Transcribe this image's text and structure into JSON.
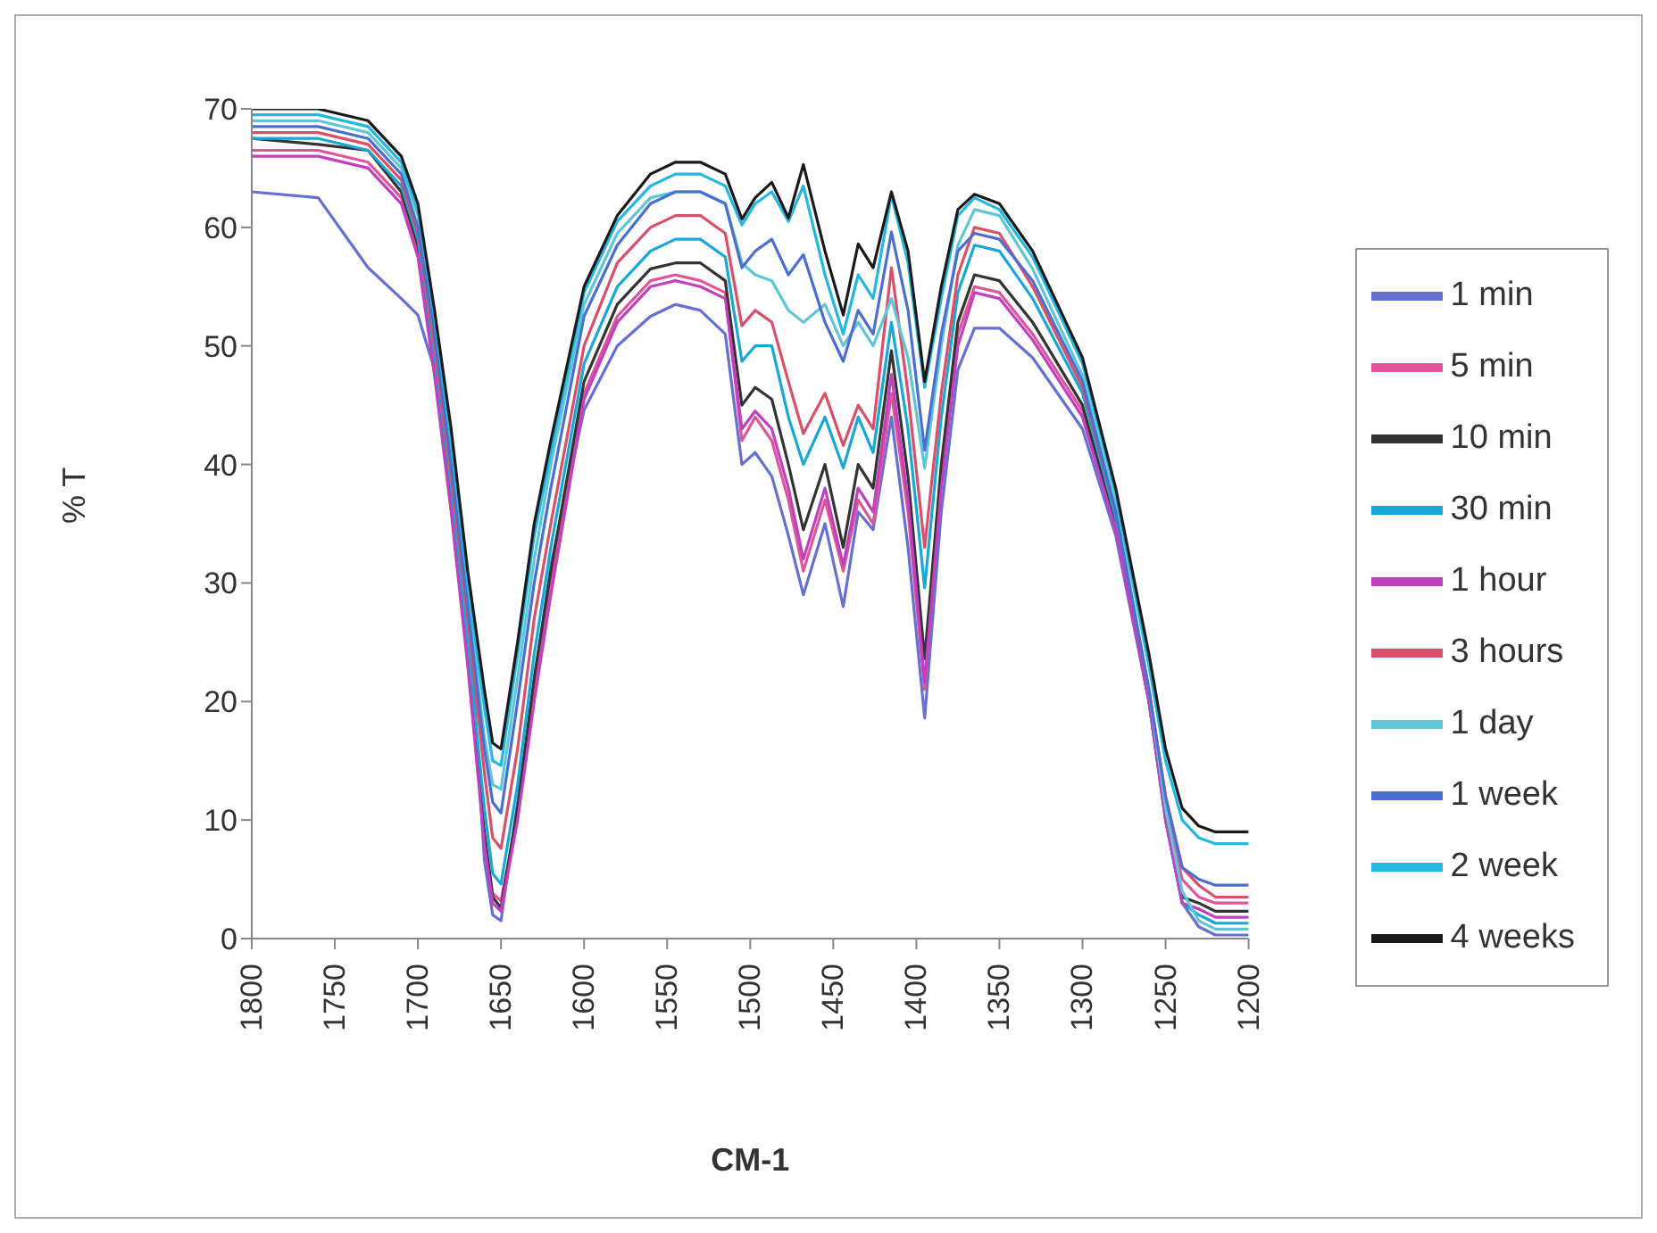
{
  "chart_data": {
    "type": "line",
    "xlabel": "CM-1",
    "ylabel": "% T",
    "x": [
      1800,
      1760,
      1730,
      1710,
      1700,
      1690,
      1680,
      1670,
      1660,
      1655,
      1650,
      1640,
      1630,
      1620,
      1600,
      1580,
      1560,
      1545,
      1530,
      1515,
      1505,
      1497,
      1487,
      1477,
      1468,
      1455,
      1444,
      1435,
      1426,
      1415,
      1405,
      1395,
      1385,
      1375,
      1365,
      1350,
      1330,
      1300,
      1280,
      1260,
      1250,
      1240,
      1230,
      1220,
      1210,
      1200
    ],
    "series": [
      {
        "name": "1 min",
        "color": "#6670d0",
        "values": [
          63,
          62.5,
          56.6,
          54,
          52.6,
          48,
          40.5,
          29,
          6.6,
          2,
          1.5,
          11.5,
          21.6,
          31.5,
          44.6,
          50,
          52.5,
          53.5,
          53,
          51,
          40,
          41,
          39,
          34,
          29,
          35,
          28,
          36,
          34.5,
          44,
          33,
          18.6,
          36,
          48,
          51.5,
          51.5,
          49,
          43,
          34,
          20,
          10,
          3,
          1,
          0.3,
          0.3,
          0.3
        ]
      },
      {
        "name": "5 min",
        "color": "#e0559a",
        "values": [
          66.5,
          66.5,
          65.5,
          62.5,
          58,
          48,
          36.5,
          23.5,
          8.5,
          3.8,
          3.2,
          10.5,
          21,
          30,
          46,
          52.5,
          55.5,
          56,
          55.5,
          54.5,
          42,
          44,
          42,
          37,
          31,
          37,
          31,
          37,
          35,
          46,
          36,
          21,
          39,
          51,
          55,
          54.5,
          51,
          44.5,
          35,
          21,
          11,
          5,
          3.5,
          3,
          3,
          3
        ]
      },
      {
        "name": "10 min",
        "color": "#333333",
        "values": [
          67.5,
          67,
          66.5,
          63,
          58.5,
          48.5,
          37,
          24,
          9,
          3.5,
          2.6,
          11,
          22,
          31,
          47,
          53.5,
          56.5,
          57,
          57,
          55.5,
          45,
          46.5,
          45.5,
          40,
          34.5,
          40,
          33,
          40,
          38,
          49.6,
          39,
          23.6,
          40,
          52,
          56,
          55.5,
          52,
          45,
          35,
          20,
          11,
          3.5,
          3,
          2.3,
          2.3,
          2.3
        ]
      },
      {
        "name": "30 min",
        "color": "#18a8d8",
        "values": [
          67.5,
          67.5,
          66.5,
          63.5,
          59,
          49,
          38,
          25,
          11,
          5.5,
          4.6,
          13,
          24,
          33,
          48.5,
          55,
          58,
          59,
          59,
          57.5,
          48.7,
          50,
          50,
          44,
          40,
          44,
          39.7,
          44,
          41,
          52,
          43,
          29.6,
          44,
          54.5,
          58.5,
          58,
          54,
          46,
          35.5,
          20,
          10,
          3,
          2,
          1.3,
          1.3,
          1.3
        ]
      },
      {
        "name": "1 hour",
        "color": "#c040c0",
        "values": [
          66,
          66,
          65,
          62,
          57.5,
          47.5,
          36,
          23,
          8,
          3,
          2.3,
          10,
          20,
          29,
          45.5,
          52,
          55,
          55.5,
          55,
          54,
          43,
          44.5,
          43,
          38,
          32,
          38,
          31.5,
          38,
          36,
          47.6,
          37,
          21.6,
          38,
          50,
          54.5,
          54,
          50.5,
          44,
          34.5,
          20,
          10,
          3,
          2.5,
          1.8,
          1.8,
          1.8
        ]
      },
      {
        "name": "3 hours",
        "color": "#d9506a",
        "values": [
          68,
          68,
          67,
          64,
          59.5,
          50,
          39,
          27,
          14,
          8.5,
          7.6,
          16,
          27,
          35,
          50,
          57,
          60,
          61,
          61,
          59.5,
          51.7,
          53,
          52,
          47,
          42.6,
          46,
          41.6,
          45,
          43,
          56.6,
          46,
          33,
          46,
          56,
          60,
          59.5,
          55,
          46.5,
          36,
          21,
          12,
          6,
          4.5,
          3.5,
          3.5,
          3.5
        ]
      },
      {
        "name": "1 day",
        "color": "#5fc6d8",
        "values": [
          69,
          69,
          68,
          65,
          61,
          51.5,
          41,
          29,
          17,
          13,
          12.6,
          22,
          32,
          40,
          53.5,
          59.5,
          62.5,
          63,
          63,
          62,
          57,
          56,
          55.5,
          53,
          52,
          53.5,
          50,
          52,
          50,
          54,
          49,
          39.7,
          50,
          58.5,
          61.5,
          61,
          56.5,
          47.5,
          36.5,
          21,
          11,
          4,
          1.5,
          0.8,
          0.8,
          0.8
        ]
      },
      {
        "name": "1 week",
        "color": "#4a6fd0",
        "values": [
          68.5,
          68.5,
          67.5,
          64.5,
          60,
          51,
          40,
          28,
          16,
          11.5,
          10.6,
          20,
          30,
          38,
          52.5,
          58.5,
          62,
          63,
          63,
          62,
          56.6,
          58,
          59,
          56,
          57.7,
          52,
          48.7,
          53,
          51,
          59.6,
          53,
          41.2,
          51,
          58,
          59.5,
          59,
          55.5,
          47,
          36,
          21,
          12,
          6,
          5,
          4.5,
          4.5,
          4.5
        ]
      },
      {
        "name": "2 week",
        "color": "#22b8e0",
        "values": [
          69.5,
          69.5,
          68.5,
          65.5,
          61.5,
          52.5,
          42,
          30,
          19.5,
          15,
          14.6,
          24,
          34,
          41,
          54.5,
          60.5,
          63.5,
          64.5,
          64.5,
          63.5,
          60.2,
          62,
          63,
          60.5,
          63.5,
          56,
          51,
          56,
          54,
          62.7,
          57,
          46.5,
          54,
          61,
          62.5,
          61.5,
          57.5,
          48.5,
          37.5,
          23,
          15,
          10,
          8.5,
          8,
          8,
          8
        ]
      },
      {
        "name": "4 weeks",
        "color": "#1a1a1a",
        "values": [
          70,
          70,
          69,
          66,
          62,
          53,
          43,
          31,
          21,
          16.5,
          16,
          25,
          35,
          42,
          55,
          61,
          64.5,
          65.5,
          65.5,
          64.5,
          60.7,
          62.5,
          63.8,
          60.8,
          65.3,
          58,
          52.6,
          58.6,
          56.6,
          63,
          58,
          47,
          55,
          61.5,
          62.8,
          62,
          58,
          49,
          38,
          24,
          16,
          11,
          9.5,
          9,
          9,
          9
        ]
      }
    ],
    "xlim": [
      1800,
      1200
    ],
    "xticks": [
      1800,
      1750,
      1700,
      1650,
      1600,
      1550,
      1500,
      1450,
      1400,
      1350,
      1300,
      1250,
      1200
    ],
    "ylim": [
      0,
      70
    ],
    "yticks": [
      0,
      10,
      20,
      30,
      40,
      50,
      60,
      70
    ],
    "legend": "right",
    "grid": false,
    "marker": "none",
    "line_style": "solid"
  }
}
